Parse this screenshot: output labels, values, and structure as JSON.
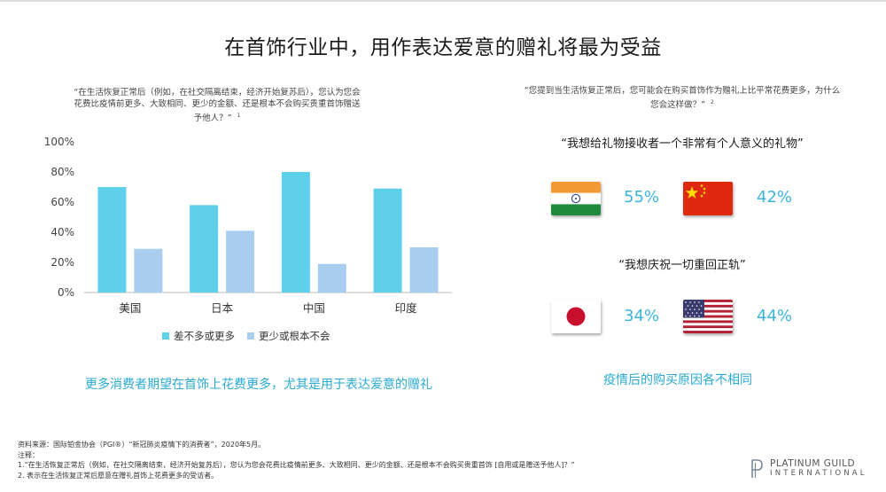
{
  "title": "在首饰行业中，用作表达爱意的赠礼将最为受益",
  "left_question": "“在生活恢复正常后（例如，在社交隔离结束，经济开始复苏后），您认为您会花费比疫情前更多、大致相同、更少的金额、还是根本不会购买贵重首饰赠送予他人？”",
  "left_question_note": "1",
  "right_question": "“您提到当生活恢复正常后，您可能会在购买首饰作为赠礼上比平常花费更多，为什么您会这样做？”",
  "right_question_note": "2",
  "chart_data": {
    "type": "bar",
    "categories": [
      "美国",
      "日本",
      "中国",
      "印度"
    ],
    "series": [
      {
        "name": "差不多或更多",
        "values": [
          70,
          58,
          80,
          69
        ],
        "color": "#5ed0ea"
      },
      {
        "name": "更少或根本不会",
        "values": [
          29,
          41,
          19,
          30
        ],
        "color": "#a9cdee"
      }
    ],
    "ylim": [
      0,
      100
    ],
    "yticks": [
      "0%",
      "20%",
      "40%",
      "60%",
      "80%",
      "100%"
    ],
    "ytick_values": [
      0,
      20,
      40,
      60,
      80,
      100
    ],
    "grid": false,
    "legend_position": "bottom"
  },
  "legend": [
    {
      "label": "差不多或更多",
      "color": "#5ed0ea"
    },
    {
      "label": "更少或根本不会",
      "color": "#a9cdee"
    }
  ],
  "left_caption": "更多消费者期望在首饰上花费更多，尤其是用于表达爱意的赠礼",
  "statement1": "“我想给礼物接收者一个非常有个人意义的礼物”",
  "statement2": "“我想庆祝一切重回正轨”",
  "stats": [
    {
      "country_icon": "india-flag-icon",
      "value": "55%"
    },
    {
      "country_icon": "china-flag-icon",
      "value": "42%"
    },
    {
      "country_icon": "japan-flag-icon",
      "value": "34%"
    },
    {
      "country_icon": "usa-flag-icon",
      "value": "44%"
    }
  ],
  "right_caption": "疫情后的购买原因各不相同",
  "footer": {
    "source": "资料来源：国际铂金协会（PGI®）“新冠肺炎疫情下的消费者”，2020年5月。",
    "notes_label": "注释：",
    "note1": "1.“在生活恢复正常后（例如，在社交隔离结束，经济开始复苏后），您认为您会花费比疫情前更多、大致相同、更少的金额、还是根本不会购买贵重首饰 [自用或是赠送予他人]？”",
    "note2": "2. 表示在生活恢复正常后愿意在赠礼首饰上花费更多的受访者。"
  },
  "logo": {
    "line1": "PLATINUM GUILD",
    "line2": "INTERNATIONAL"
  }
}
